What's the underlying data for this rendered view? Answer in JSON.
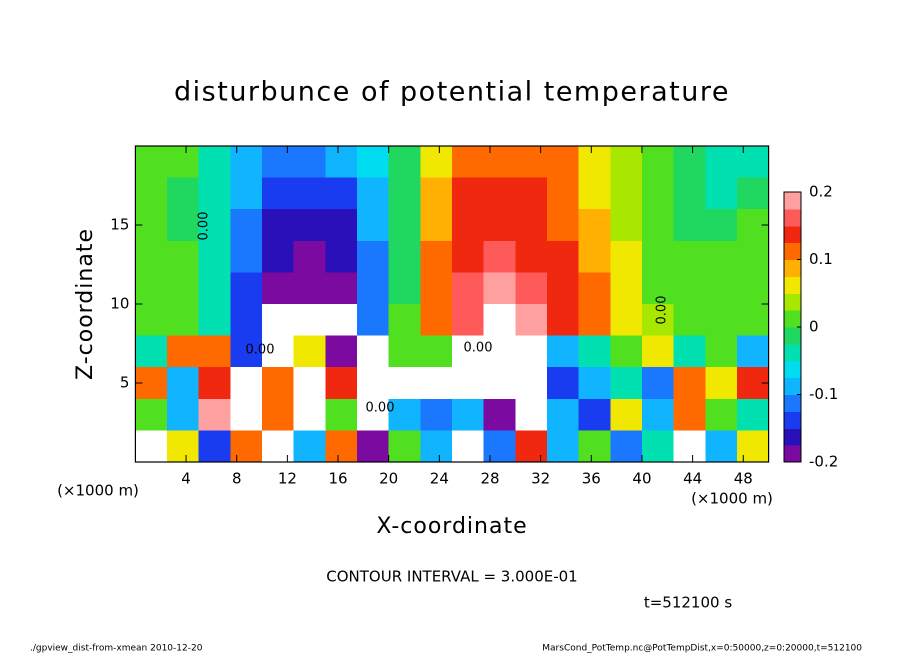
{
  "chart_data": {
    "type": "heatmap",
    "title": "disturbunce of potential temperature",
    "xlabel": "X-coordinate",
    "ylabel": "Z-coordinate",
    "x_unit": "(×1000 m)",
    "y_unit": "(×1000 m)",
    "note": "CONTOUR INTERVAL = 3.000E-01",
    "time": "t=512100 s",
    "footer_left": "./gpview_dist-from-xmean  2010-12-20",
    "footer_right": "MarsCond_PotTemp.nc@PotTempDist,x=0:50000,z=0:20000,t=512100",
    "contour_labels": [
      "0.00",
      "0.00",
      "0.00",
      "0.00",
      "0.00"
    ],
    "xlim": [
      0,
      50
    ],
    "ylim": [
      0,
      20
    ],
    "xticks": [
      4,
      8,
      12,
      16,
      20,
      24,
      28,
      32,
      36,
      40,
      44,
      48
    ],
    "yticks": [
      5,
      10,
      15
    ],
    "x": [
      1.25,
      3.75,
      6.25,
      8.75,
      11.25,
      13.75,
      16.25,
      18.75,
      21.25,
      23.75,
      26.25,
      28.75,
      31.25,
      33.75,
      36.25,
      38.75,
      41.25,
      43.75,
      46.25,
      48.75
    ],
    "z": [
      19,
      17,
      15,
      13,
      11,
      9,
      7,
      5,
      3,
      1
    ],
    "values": [
      [
        0.01,
        0.0,
        -0.03,
        -0.08,
        -0.11,
        -0.12,
        -0.1,
        -0.07,
        -0.01,
        0.06,
        0.11,
        0.12,
        0.12,
        0.1,
        0.06,
        0.03,
        0.0,
        -0.02,
        -0.04,
        -0.03
      ],
      [
        0.0,
        -0.01,
        -0.04,
        -0.1,
        -0.14,
        -0.15,
        -0.14,
        -0.09,
        -0.01,
        0.08,
        0.13,
        0.14,
        0.13,
        0.11,
        0.07,
        0.03,
        0.0,
        -0.02,
        -0.03,
        -0.02
      ],
      [
        0.0,
        -0.01,
        -0.05,
        -0.11,
        -0.16,
        -0.17,
        -0.16,
        -0.1,
        -0.01,
        0.09,
        0.14,
        0.15,
        0.14,
        0.12,
        0.08,
        0.04,
        0.01,
        -0.01,
        -0.02,
        0.0
      ],
      [
        0.01,
        0.0,
        -0.05,
        -0.12,
        -0.17,
        -0.18,
        -0.17,
        -0.11,
        -0.01,
        0.1,
        0.15,
        0.16,
        0.15,
        0.13,
        0.09,
        0.05,
        0.02,
        0.0,
        0.0,
        0.01
      ],
      [
        0.01,
        0.0,
        -0.05,
        -0.13,
        -0.19,
        -0.19,
        -0.18,
        -0.12,
        -0.01,
        0.1,
        0.16,
        0.18,
        0.17,
        0.14,
        0.1,
        0.06,
        0.02,
        0.0,
        0.01,
        0.01
      ],
      [
        0.02,
        0.01,
        -0.04,
        -0.13,
        -0.22,
        -0.21,
        -0.22,
        -0.12,
        0.0,
        0.1,
        0.17,
        0.22,
        0.19,
        0.15,
        0.1,
        0.06,
        0.03,
        0.01,
        0.01,
        0.02
      ],
      [
        -0.05,
        0.12,
        0.1,
        -0.15,
        -0.25,
        0.05,
        -0.2,
        -0.25,
        0.0,
        0.0,
        -0.25,
        -0.25,
        -0.25,
        -0.1,
        -0.05,
        0.0,
        0.05,
        -0.05,
        0.0,
        -0.1
      ],
      [
        0.1,
        -0.1,
        0.15,
        -0.25,
        0.12,
        -0.25,
        0.15,
        -0.25,
        -0.25,
        -0.25,
        -0.25,
        -0.25,
        -0.25,
        -0.15,
        -0.1,
        -0.05,
        -0.12,
        0.1,
        0.05,
        0.15
      ],
      [
        0.0,
        -0.1,
        0.2,
        -0.25,
        0.1,
        -0.25,
        0.0,
        -0.25,
        -0.1,
        -0.12,
        -0.1,
        -0.2,
        -0.25,
        -0.1,
        -0.15,
        0.05,
        -0.1,
        0.12,
        0.02,
        -0.05
      ],
      [
        -0.25,
        0.05,
        -0.15,
        0.1,
        -0.25,
        -0.1,
        0.1,
        -0.2,
        0.0,
        -0.1,
        -0.25,
        -0.12,
        0.15,
        -0.1,
        0.0,
        -0.12,
        -0.05,
        -0.25,
        -0.1,
        0.05
      ]
    ],
    "clim": [
      -0.2,
      0.2
    ],
    "cticks": [
      -0.2,
      -0.1,
      0,
      0.1,
      0.2
    ],
    "colormap": [
      "#7a0aa0",
      "#2a10b8",
      "#1a3cf0",
      "#1a78ff",
      "#10b4ff",
      "#00dcf0",
      "#00e0b0",
      "#20d860",
      "#50e020",
      "#a8e800",
      "#f0e800",
      "#ffb000",
      "#ff6a00",
      "#f02810",
      "#ff5a5a",
      "#ffa0a0"
    ],
    "out_of_range_color": "#ffffff"
  }
}
